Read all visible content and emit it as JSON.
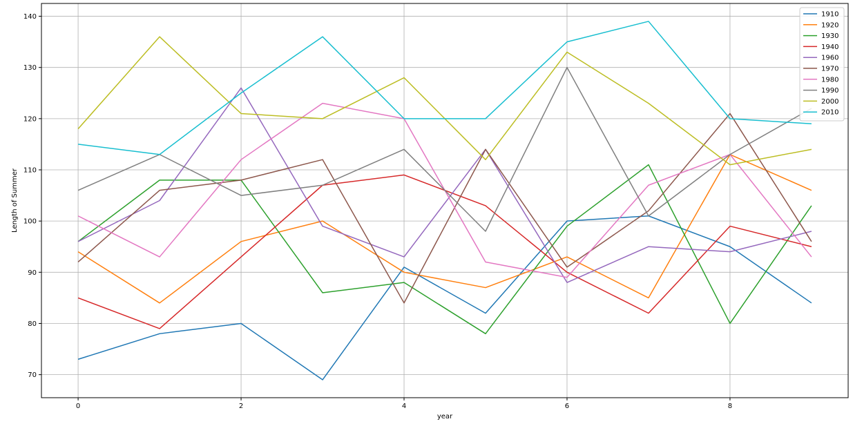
{
  "chart_data": {
    "type": "line",
    "title": "",
    "xlabel": "year",
    "ylabel": "Length of Summer",
    "xlim": [
      -0.45,
      9.45
    ],
    "ylim": [
      65.5,
      142.5
    ],
    "xticks": [
      0,
      2,
      4,
      6,
      8
    ],
    "yticks": [
      70,
      80,
      90,
      100,
      110,
      120,
      130,
      140
    ],
    "grid": true,
    "legend_position": "top-right",
    "x": [
      0,
      1,
      2,
      3,
      4,
      5,
      6,
      7,
      8,
      9
    ],
    "series": [
      {
        "name": "1910",
        "color": "#1f77b4",
        "values": [
          73,
          78,
          80,
          69,
          91,
          82,
          100,
          101,
          95,
          84
        ]
      },
      {
        "name": "1920",
        "color": "#ff7f0e",
        "values": [
          94,
          84,
          96,
          100,
          90,
          87,
          93,
          85,
          113,
          106
        ]
      },
      {
        "name": "1930",
        "color": "#2ca02c",
        "values": [
          96,
          108,
          108,
          86,
          88,
          78,
          99,
          111,
          80,
          103
        ]
      },
      {
        "name": "1940",
        "color": "#d62728",
        "values": [
          85,
          79,
          93,
          107,
          109,
          103,
          90,
          82,
          99,
          95
        ]
      },
      {
        "name": "1960",
        "color": "#9467bd",
        "values": [
          96,
          104,
          126,
          99,
          93,
          114,
          88,
          95,
          94,
          98
        ]
      },
      {
        "name": "1970",
        "color": "#8c564b",
        "values": [
          92,
          106,
          108,
          112,
          84,
          114,
          91,
          102,
          121,
          96
        ]
      },
      {
        "name": "1980",
        "color": "#e377c2",
        "values": [
          101,
          93,
          112,
          123,
          120,
          92,
          89,
          107,
          113,
          93
        ]
      },
      {
        "name": "1990",
        "color": "#7f7f7f",
        "values": [
          106,
          113,
          105,
          107,
          114,
          98,
          130,
          101,
          113,
          122
        ]
      },
      {
        "name": "2000",
        "color": "#bcbd22",
        "values": [
          118,
          136,
          121,
          120,
          128,
          112,
          133,
          123,
          111,
          114
        ]
      },
      {
        "name": "2010",
        "color": "#17becf",
        "values": [
          115,
          113,
          125,
          136,
          120,
          120,
          135,
          139,
          120,
          119
        ]
      }
    ]
  }
}
